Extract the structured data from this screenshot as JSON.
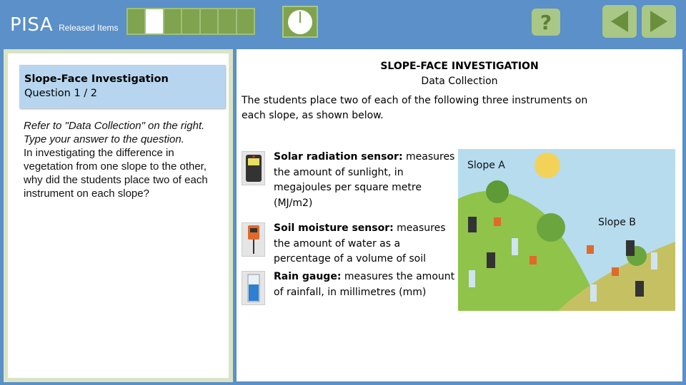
{
  "header": {
    "brand": "PISA",
    "subtitle": "Released Items",
    "progress": {
      "total_segments": 7,
      "current_segment": 2
    },
    "help_label": "?"
  },
  "question": {
    "title": "Slope-Face Investigation",
    "number": "Question 1 / 2",
    "instruction": "Refer to \"Data Collection\" on the right. Type your answer to the question.",
    "text": "In investigating the difference in vegetation from one slope to the other, why did the students place two of each instrument on each slope?"
  },
  "content": {
    "title": "SLOPE-FACE INVESTIGATION",
    "subtitle": "Data Collection",
    "intro": "The students place two of each of the following three instruments on each slope, as shown below.",
    "instruments": [
      {
        "name": "Solar radiation sensor:",
        "desc": " measures the amount of sunlight, in megajoules per square metre (MJ/m2)",
        "icon": "solar-sensor-icon"
      },
      {
        "name": "Soil moisture sensor:",
        "desc": " measures the amount of water as a percentage of a volume of soil",
        "icon": "soil-sensor-icon"
      },
      {
        "name": "Rain gauge:",
        "desc": " measures the amount of rainfall, in millimetres (mm)",
        "icon": "rain-gauge-icon"
      }
    ],
    "slope_a": "Slope A",
    "slope_b": "Slope B"
  }
}
